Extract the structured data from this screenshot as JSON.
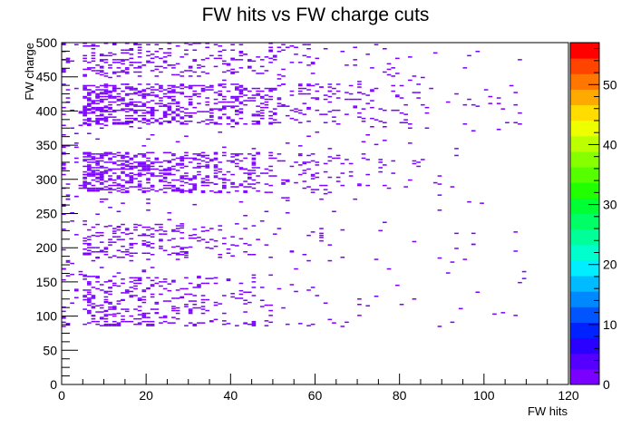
{
  "chart_data": {
    "type": "heatmap",
    "title": "FW hits vs FW charge cuts",
    "xlabel": "FW hits",
    "ylabel": "FW charge",
    "xlim": [
      0,
      120
    ],
    "ylim": [
      0,
      500
    ],
    "x_ticks": [
      0,
      20,
      40,
      60,
      80,
      100,
      120
    ],
    "y_ticks": [
      0,
      50,
      100,
      150,
      200,
      250,
      300,
      350,
      400,
      450,
      500
    ],
    "colorbar": {
      "range": [
        0,
        57
      ],
      "ticks": [
        0,
        10,
        20,
        30,
        40,
        50
      ],
      "colors": [
        "#7a00ff",
        "#5500ff",
        "#2a00ff",
        "#0022ff",
        "#0055ff",
        "#0088ff",
        "#00bbff",
        "#00eeff",
        "#00ffcc",
        "#00ff99",
        "#00ff66",
        "#00ff33",
        "#22ff00",
        "#55ff00",
        "#88ff00",
        "#bbff00",
        "#eeff00",
        "#ffdd00",
        "#ffaa00",
        "#ff7700",
        "#ff4400",
        "#ff0000"
      ]
    },
    "clusters": [
      {
        "x_range": [
          5,
          85
        ],
        "y_range": [
          85,
          92
        ],
        "density": "high",
        "label": "band near 88"
      },
      {
        "x_range": [
          5,
          70
        ],
        "y_range": [
          95,
          160
        ],
        "density": "medium"
      },
      {
        "x_range": [
          5,
          80
        ],
        "y_range": [
          185,
          235
        ],
        "density": "medium"
      },
      {
        "x_range": [
          5,
          100
        ],
        "y_range": [
          280,
          340
        ],
        "density": "high"
      },
      {
        "x_range": [
          5,
          110
        ],
        "y_range": [
          380,
          440
        ],
        "density": "high"
      },
      {
        "x_range": [
          5,
          100
        ],
        "y_range": [
          450,
          500
        ],
        "density": "medium"
      }
    ],
    "cell_color": "#7a00ff",
    "max_count": 57
  }
}
